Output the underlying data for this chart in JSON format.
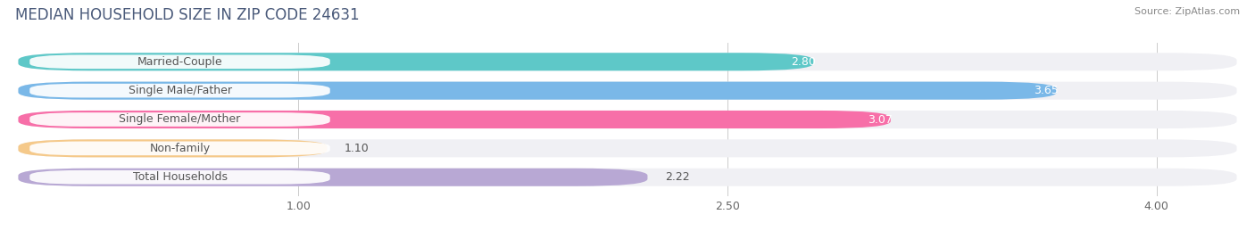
{
  "title": "MEDIAN HOUSEHOLD SIZE IN ZIP CODE 24631",
  "source": "Source: ZipAtlas.com",
  "categories": [
    "Married-Couple",
    "Single Male/Father",
    "Single Female/Mother",
    "Non-family",
    "Total Households"
  ],
  "values": [
    2.8,
    3.65,
    3.07,
    1.1,
    2.22
  ],
  "bar_colors": [
    "#5ec8c8",
    "#7ab8e8",
    "#f76fa8",
    "#f5c98a",
    "#b8a8d4"
  ],
  "bar_edge_colors": [
    "#4ab0b0",
    "#5a9fd4",
    "#e04080",
    "#e8a050",
    "#9880b8"
  ],
  "value_colors": [
    "#ffffff",
    "#ffffff",
    "#ffffff",
    "#555555",
    "#555555"
  ],
  "xlim_start": 0.0,
  "xlim_end": 4.3,
  "x_axis_start": 0.7,
  "xticks": [
    1.0,
    2.5,
    4.0
  ],
  "xtick_labels": [
    "1.00",
    "2.50",
    "4.00"
  ],
  "background_color": "#ffffff",
  "row_bg_color": "#f0f0f4",
  "title_fontsize": 12,
  "label_fontsize": 9,
  "value_fontsize": 9,
  "source_fontsize": 8,
  "title_color": "#4a5a7a",
  "source_color": "#888888",
  "label_color": "#555555"
}
